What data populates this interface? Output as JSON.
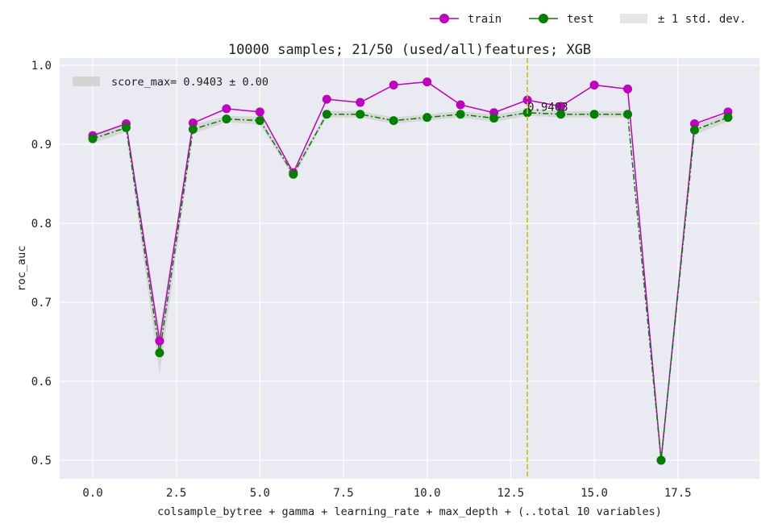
{
  "chart_data": {
    "type": "line",
    "title": "10000 samples; 21/50 (used/all)features; XGB",
    "xlabel": "colsample_bytree + gamma + learning_rate + max_depth + (..total 10 variables)",
    "ylabel": "roc_auc",
    "xlim": [
      -1,
      20
    ],
    "ylim": [
      0.475,
      1.0
    ],
    "xticks": [
      0.0,
      2.5,
      5.0,
      7.5,
      10.0,
      12.5,
      15.0,
      17.5
    ],
    "xtick_labels": [
      "0.0",
      "2.5",
      "5.0",
      "7.5",
      "10.0",
      "12.5",
      "15.0",
      "17.5"
    ],
    "yticks": [
      0.5,
      0.6,
      0.7,
      0.8,
      0.9,
      1.0
    ],
    "ytick_labels": [
      "0.5",
      "0.6",
      "0.7",
      "0.8",
      "0.9",
      "1.0"
    ],
    "grid": true,
    "legend_position": "above-right",
    "x": [
      0,
      1,
      2,
      3,
      4,
      5,
      6,
      7,
      8,
      9,
      10,
      11,
      12,
      13,
      14,
      15,
      16,
      17,
      18,
      19
    ],
    "series": [
      {
        "name": "train",
        "color": "#c000c0",
        "values": [
          0.911,
          0.926,
          0.651,
          0.927,
          0.945,
          0.941,
          0.864,
          0.957,
          0.953,
          0.975,
          0.979,
          0.95,
          0.94,
          0.956,
          0.948,
          0.975,
          0.97,
          0.5,
          0.926,
          0.941
        ]
      },
      {
        "name": "test",
        "color": "#008000",
        "values": [
          0.907,
          0.921,
          0.636,
          0.919,
          0.932,
          0.93,
          0.862,
          0.938,
          0.938,
          0.93,
          0.934,
          0.938,
          0.933,
          0.94,
          0.938,
          0.938,
          0.938,
          0.5,
          0.918,
          0.934
        ],
        "std": [
          0.006,
          0.005,
          0.028,
          0.006,
          0.004,
          0.005,
          0.004,
          0.004,
          0.004,
          0.004,
          0.004,
          0.004,
          0.005,
          0.004,
          0.004,
          0.004,
          0.004,
          0.002,
          0.006,
          0.005
        ]
      }
    ],
    "band_label": "± 1 std. dev.",
    "band_color": "#d3d3d3",
    "best": {
      "x": 13,
      "score": 0.9403,
      "label": "0.9403",
      "legend_text": "score_max= 0.9403 ± 0.00",
      "line_color": "#bfbf00"
    }
  }
}
